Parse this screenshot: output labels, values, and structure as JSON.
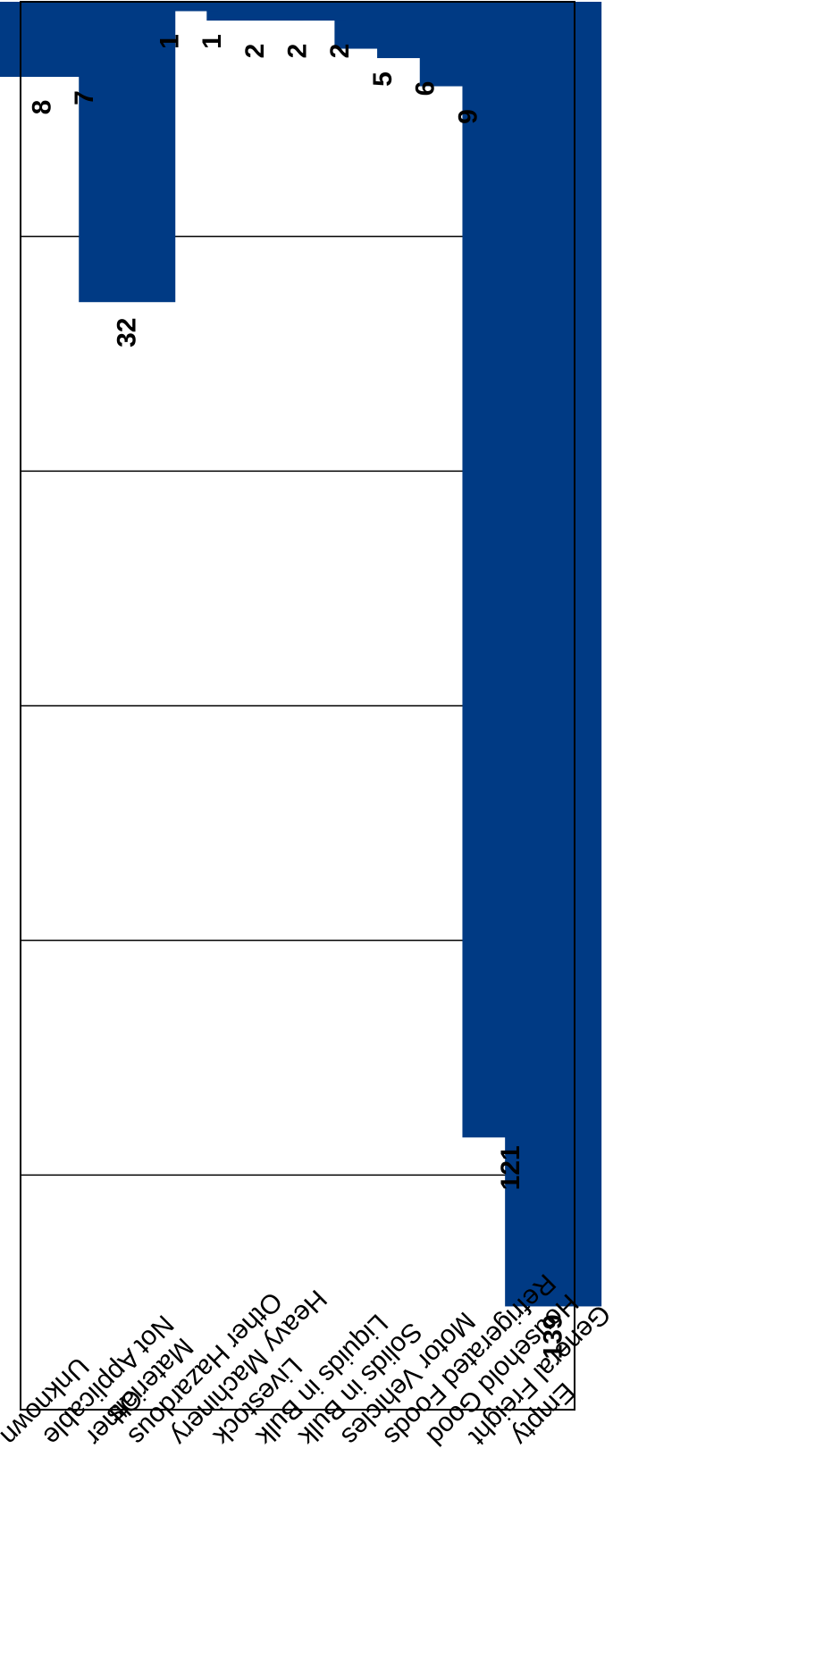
{
  "chart_data": {
    "type": "bar",
    "orientation": "rotated-180",
    "categories": [
      "Empty",
      "General Freight",
      "Household Good",
      "Refrigerated Foods",
      "Motor Vehicles",
      "Solids in Bulk",
      "Liquids in Bulk",
      "Livestock",
      "Heavy Machinery",
      "Other Hazardous Materials",
      "Other",
      "Not Applicable",
      "Unknown"
    ],
    "category_lines": [
      [
        "Empty"
      ],
      [
        "General Freight"
      ],
      [
        "Household Good"
      ],
      [
        "Refrigerated Foods"
      ],
      [
        "Motor Vehicles"
      ],
      [
        "Solids in Bulk"
      ],
      [
        "Liquids in Bulk"
      ],
      [
        "Livestock"
      ],
      [
        "Heavy Machinery"
      ],
      [
        "Other Hazardous",
        "Materials"
      ],
      [
        "Other"
      ],
      [
        "Not Applicable"
      ],
      [
        "Unknown"
      ]
    ],
    "values": [
      139,
      121,
      9,
      6,
      5,
      2,
      2,
      2,
      1,
      1,
      32,
      7,
      8
    ],
    "ylim": [
      0,
      150
    ],
    "yticks": [
      0,
      25,
      50,
      75,
      100,
      125,
      150
    ],
    "grid": true,
    "colors": {
      "bar": "#003a84",
      "grid": "#000000",
      "text": "#000000"
    },
    "title": "",
    "xlabel": "",
    "ylabel": ""
  }
}
